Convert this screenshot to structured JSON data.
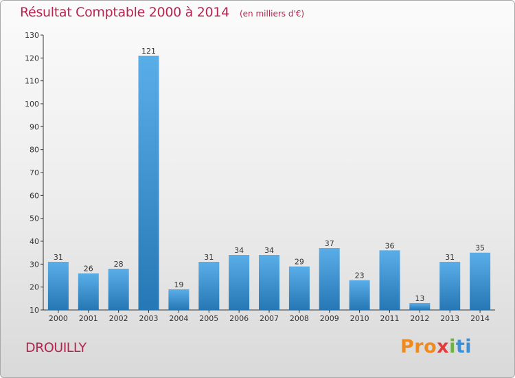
{
  "header": {
    "title": "Résultat Comptable 2000 à 2014",
    "unit": "(en milliers d'€)"
  },
  "footer": {
    "commune": "DROUILLY",
    "logo": "Proxiti",
    "logo_parts": [
      "Pro",
      "x",
      "i",
      "ti"
    ]
  },
  "colors": {
    "title": "#b5254f",
    "bar_top": "#5aaee8",
    "bar_bottom": "#2677b5",
    "axis": "#333333"
  },
  "chart_data": {
    "type": "bar",
    "title": "Résultat Comptable 2000 à 2014",
    "ylabel": "(en milliers d'€)",
    "xlabel": "",
    "categories": [
      "2000",
      "2001",
      "2002",
      "2003",
      "2004",
      "2005",
      "2006",
      "2007",
      "2008",
      "2009",
      "2010",
      "2011",
      "2012",
      "2013",
      "2014"
    ],
    "values": [
      31,
      26,
      28,
      121,
      19,
      31,
      34,
      34,
      29,
      37,
      23,
      36,
      13,
      31,
      35
    ],
    "ylim": [
      10,
      130
    ],
    "yticks": [
      10,
      20,
      30,
      40,
      50,
      60,
      70,
      80,
      90,
      100,
      110,
      120,
      130
    ],
    "grid": false,
    "data_labels": true
  }
}
